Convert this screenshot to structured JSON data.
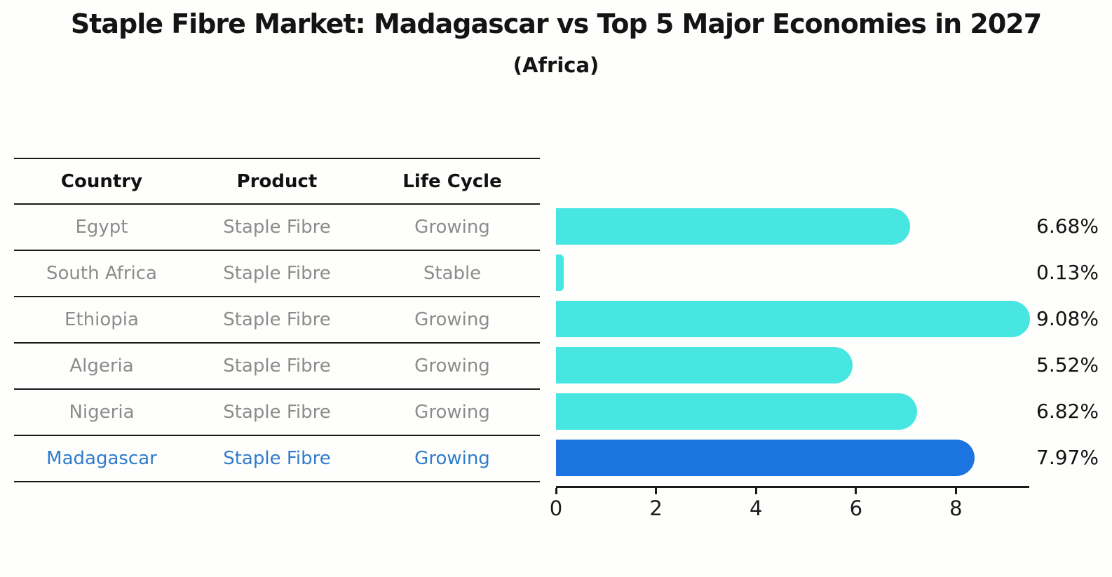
{
  "title": "Staple Fibre Market: Madagascar vs Top 5 Major Economies in 2027",
  "subtitle": "(Africa)",
  "table": {
    "headers": [
      "Country",
      "Product",
      "Life Cycle"
    ],
    "rows": [
      {
        "country": "Egypt",
        "product": "Staple Fibre",
        "life_cycle": "Growing",
        "highlighted": false
      },
      {
        "country": "South Africa",
        "product": "Staple Fibre",
        "life_cycle": "Stable",
        "highlighted": false
      },
      {
        "country": "Ethiopia",
        "product": "Staple Fibre",
        "life_cycle": "Growing",
        "highlighted": false
      },
      {
        "country": "Algeria",
        "product": "Staple Fibre",
        "life_cycle": "Growing",
        "highlighted": false
      },
      {
        "country": "Nigeria",
        "product": "Staple Fibre",
        "life_cycle": "Growing",
        "highlighted": false
      },
      {
        "country": "Madagascar",
        "product": "Staple Fibre",
        "life_cycle": "Growing",
        "highlighted": true
      }
    ]
  },
  "chart_data": {
    "type": "bar",
    "orientation": "horizontal",
    "title": "Staple Fibre Market: Madagascar vs Top 5 Major Economies in 2027",
    "subtitle": "(Africa)",
    "categories": [
      "Egypt",
      "South Africa",
      "Ethiopia",
      "Algeria",
      "Nigeria",
      "Madagascar"
    ],
    "values": [
      6.68,
      0.13,
      9.08,
      5.52,
      6.82,
      7.97
    ],
    "value_labels": [
      "6.68%",
      "0.13%",
      "9.08%",
      "5.52%",
      "6.82%",
      "7.97%"
    ],
    "xlabel": "",
    "ylabel": "",
    "xlim": [
      0,
      9.5
    ],
    "xticks": [
      0,
      2,
      4,
      6,
      8
    ],
    "grid": false,
    "legend": false,
    "highlight_index": 5,
    "colors": {
      "bar": "#47e6e0",
      "highlight_bar": "#1c74e0",
      "highlight_bar_dots": "#1c74e0",
      "highlight_text": "#2f7ccb",
      "row_text": "#8c8c8c",
      "header_text": "#111111",
      "value_label": "#111111",
      "axis": "#1a1a1a"
    }
  }
}
